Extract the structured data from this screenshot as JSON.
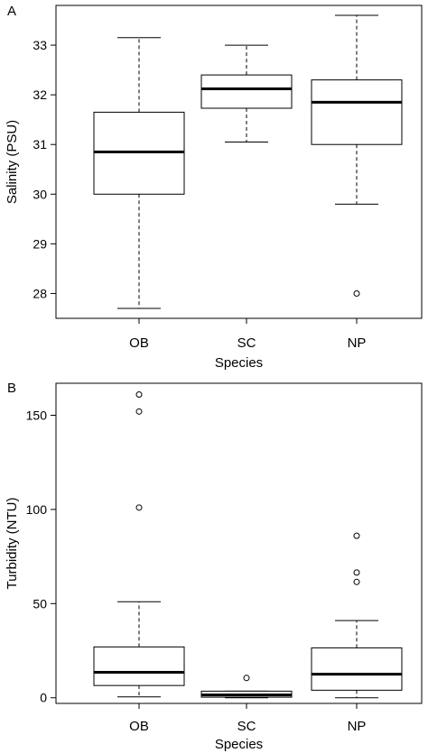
{
  "chart_data": [
    {
      "type": "box",
      "panel_label": "A",
      "xlabel": "Species",
      "ylabel": "Salinity (PSU)",
      "ylim": [
        27.5,
        33.8
      ],
      "yticks": [
        28,
        29,
        30,
        31,
        32,
        33
      ],
      "categories": [
        "OB",
        "SC",
        "NP"
      ],
      "boxes": [
        {
          "category": "OB",
          "whisker_low": 27.7,
          "q1": 30.0,
          "median": 30.85,
          "q3": 31.65,
          "whisker_high": 33.15,
          "outliers": []
        },
        {
          "category": "SC",
          "whisker_low": 31.05,
          "q1": 31.73,
          "median": 32.12,
          "q3": 32.4,
          "whisker_high": 33.0,
          "outliers": []
        },
        {
          "category": "NP",
          "whisker_low": 29.8,
          "q1": 31.0,
          "median": 31.85,
          "q3": 32.3,
          "whisker_high": 33.6,
          "outliers": [
            28.0
          ]
        }
      ],
      "grid": false
    },
    {
      "type": "box",
      "panel_label": "B",
      "xlabel": "Species",
      "ylabel": "Turbidity (NTU)",
      "ylim": [
        -3,
        167
      ],
      "yticks": [
        0,
        50,
        100,
        150
      ],
      "categories": [
        "OB",
        "SC",
        "NP"
      ],
      "boxes": [
        {
          "category": "OB",
          "whisker_low": 0.5,
          "q1": 6.5,
          "median": 13.5,
          "q3": 27.0,
          "whisker_high": 51.0,
          "outliers": [
            101,
            152,
            161
          ]
        },
        {
          "category": "SC",
          "whisker_low": 0.0,
          "q1": 0.3,
          "median": 1.5,
          "q3": 3.5,
          "whisker_high": 3.5,
          "outliers": [
            10.5
          ]
        },
        {
          "category": "NP",
          "whisker_low": 0.0,
          "q1": 4.0,
          "median": 12.5,
          "q3": 26.5,
          "whisker_high": 41.0,
          "outliers": [
            61.5,
            66.5,
            86.0
          ]
        }
      ],
      "grid": false
    }
  ]
}
